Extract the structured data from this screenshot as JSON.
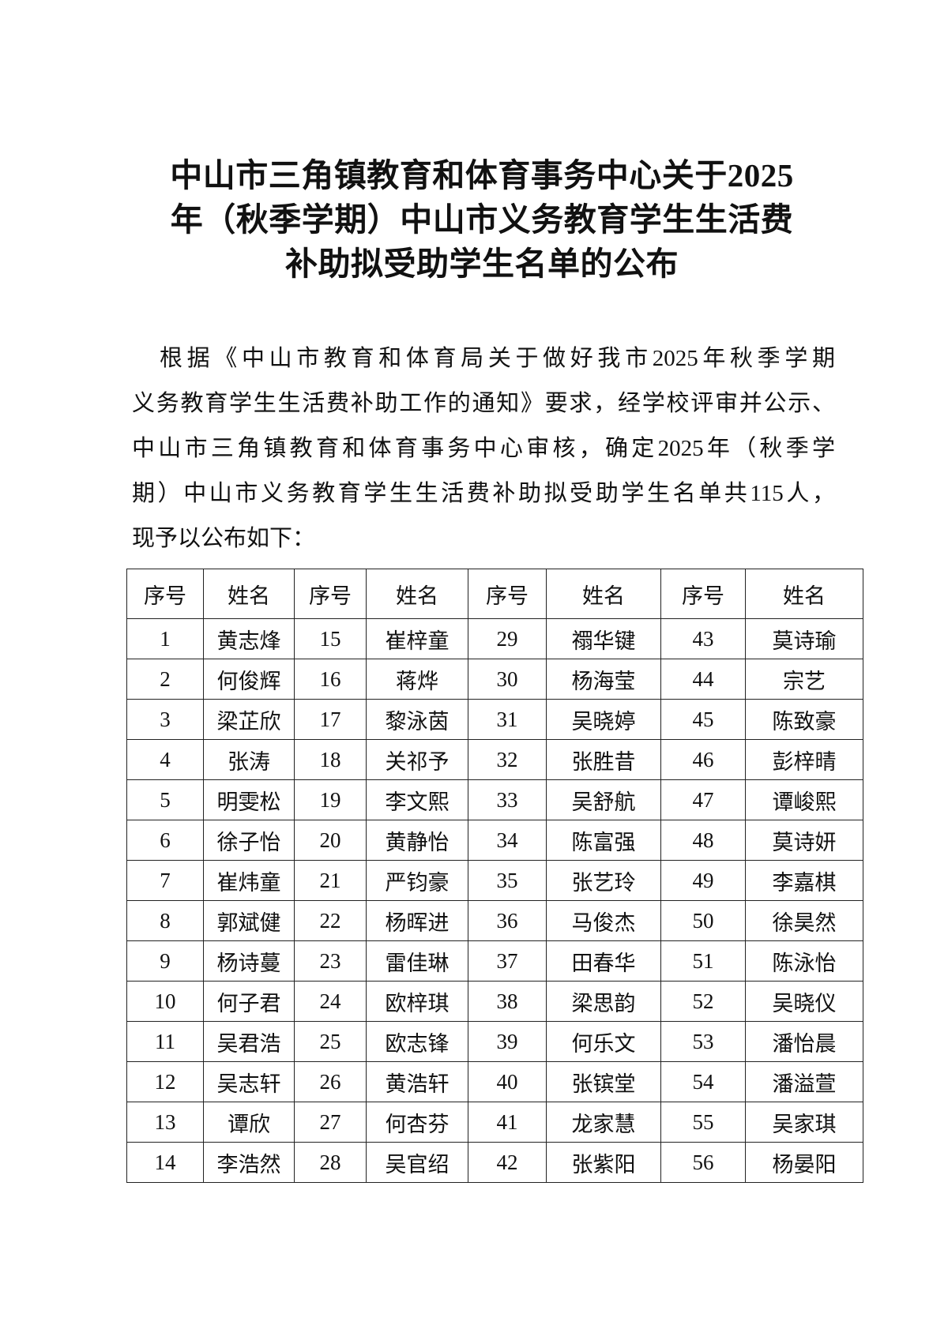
{
  "title": {
    "lines": [
      "中山市三角镇教育和体育事务中心关于2025",
      "年（秋季学期）中山市义务教育学生生活费",
      "补助拟受助学生名单的公布"
    ]
  },
  "body": {
    "lines": [
      "根据《中山市教育和体育局关于做好我市2025年秋季学期",
      "义务教育学生生活费补助工作的通知》要求，经学校评审并公示、",
      "中山市三角镇教育和体育事务中心审核，确定2025年（秋季学",
      "期）中山市义务教育学生生活费补助拟受助学生名单共115人，",
      "现予以公布如下："
    ]
  },
  "table": {
    "headers": [
      "序号",
      "姓名",
      "序号",
      "姓名",
      "序号",
      "姓名",
      "序号",
      "姓名"
    ],
    "rows": [
      [
        "1",
        "黄志烽",
        "15",
        "崔梓童",
        "29",
        "禤华键",
        "43",
        "莫诗瑜"
      ],
      [
        "2",
        "何俊辉",
        "16",
        "蒋烨",
        "30",
        "杨海莹",
        "44",
        "宗艺"
      ],
      [
        "3",
        "梁芷欣",
        "17",
        "黎泳茵",
        "31",
        "吴晓婷",
        "45",
        "陈致豪"
      ],
      [
        "4",
        "张涛",
        "18",
        "关祁予",
        "32",
        "张胜昔",
        "46",
        "彭梓晴"
      ],
      [
        "5",
        "明雯松",
        "19",
        "李文熙",
        "33",
        "吴舒航",
        "47",
        "谭峻熙"
      ],
      [
        "6",
        "徐子怡",
        "20",
        "黄静怡",
        "34",
        "陈富强",
        "48",
        "莫诗妍"
      ],
      [
        "7",
        "崔炜童",
        "21",
        "严钧豪",
        "35",
        "张艺玲",
        "49",
        "李嘉棋"
      ],
      [
        "8",
        "郭斌健",
        "22",
        "杨晖进",
        "36",
        "马俊杰",
        "50",
        "徐昊然"
      ],
      [
        "9",
        "杨诗蔓",
        "23",
        "雷佳琳",
        "37",
        "田春华",
        "51",
        "陈泳怡"
      ],
      [
        "10",
        "何子君",
        "24",
        "欧梓琪",
        "38",
        "梁思韵",
        "52",
        "吴晓仪"
      ],
      [
        "11",
        "吴君浩",
        "25",
        "欧志锋",
        "39",
        "何乐文",
        "53",
        "潘怡晨"
      ],
      [
        "12",
        "吴志轩",
        "26",
        "黄浩轩",
        "40",
        "张镔堂",
        "54",
        "潘溢萱"
      ],
      [
        "13",
        "谭欣",
        "27",
        "何杏芬",
        "41",
        "龙家慧",
        "55",
        "吴家琪"
      ],
      [
        "14",
        "李浩然",
        "28",
        "吴官绍",
        "42",
        "张紫阳",
        "56",
        "杨晏阳"
      ]
    ]
  }
}
